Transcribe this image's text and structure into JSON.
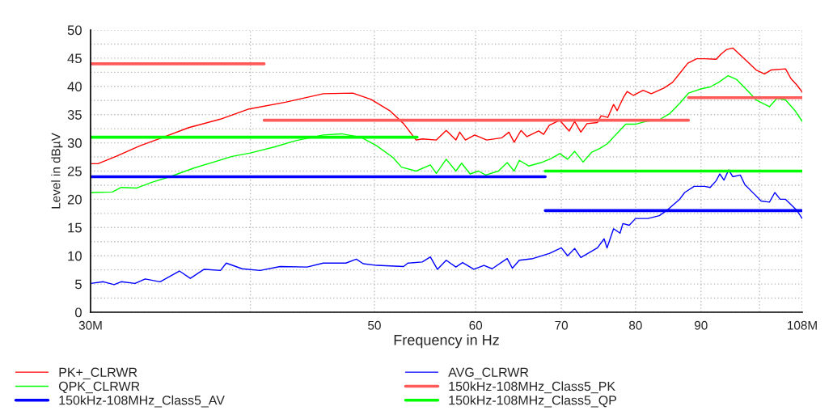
{
  "chart_data": {
    "type": "line",
    "xlabel": "Frequency in Hz",
    "ylabel": "Level in dBµV",
    "log": "x",
    "xlim": [
      30,
      108
    ],
    "xticks": [
      {
        "value": 30,
        "label": "30M"
      },
      {
        "value": 40,
        "label": null
      },
      50,
      60,
      70,
      80,
      90,
      {
        "value": 100,
        "label": null
      },
      {
        "value": 108,
        "label": "108M"
      }
    ],
    "ylim": [
      0,
      50
    ],
    "yticks": [
      0,
      {
        "value": 2.5,
        "label": null
      },
      5,
      {
        "value": 7.5,
        "label": null
      },
      10,
      {
        "value": 12.5,
        "label": null
      },
      15,
      {
        "value": 17.5,
        "label": null
      },
      20,
      {
        "value": 22.5,
        "label": null
      },
      25,
      {
        "value": 27.5,
        "label": null
      },
      30,
      {
        "value": 32.5,
        "label": null
      },
      35,
      {
        "value": 37.5,
        "label": null
      },
      40,
      {
        "value": 42.5,
        "label": null
      },
      45,
      {
        "value": 47.5,
        "label": null
      },
      50
    ],
    "grid": true,
    "legend": "bottom",
    "line_style": "solid",
    "series": [
      {
        "name": "PK+_CLRWR",
        "color": "#ff0000",
        "x": [
          30.0,
          30.4,
          31.4,
          32.8,
          34.1,
          35.8,
          37.9,
          39.9,
          42.6,
          45.6,
          48.1,
          49.7,
          51.4,
          52.7,
          53.9,
          54.5,
          55.9,
          56.9,
          57.9,
          58.3,
          58.9,
          59.9,
          61.2,
          62.9,
          63.7,
          64.3,
          65.1,
          65.8,
          67.2,
          67.8,
          68.5,
          69.8,
          71.0,
          71.7,
          72.5,
          73.3,
          74.7,
          75.2,
          76.1,
          76.9,
          77.4,
          78.3,
          78.8,
          79.7,
          81.1,
          82.3,
          84.2,
          85.5,
          86.7,
          87.9,
          89.3,
          90.6,
          92.5,
          93.3,
          94.2,
          95.3,
          97.4,
          99.4,
          100.9,
          102.1,
          104.8,
          105.8,
          106.9,
          108
        ],
        "values": [
          26.3,
          26.3,
          27.6,
          29.5,
          30.9,
          32.7,
          34.2,
          36.0,
          37.2,
          38.7,
          38.8,
          37.7,
          35.7,
          33.4,
          30.5,
          30.7,
          30.5,
          32.2,
          30.5,
          31.9,
          30.5,
          31.4,
          30.5,
          30.9,
          31.9,
          30.1,
          32.2,
          31.1,
          32.1,
          31.5,
          33.1,
          34.0,
          32.1,
          33.8,
          31.9,
          33.4,
          33.6,
          34.8,
          34.5,
          36.8,
          35.7,
          38.1,
          39.1,
          38.4,
          39.3,
          38.7,
          39.7,
          40.7,
          42.4,
          44.1,
          44.9,
          44.9,
          44.8,
          45.7,
          46.5,
          46.8,
          44.8,
          42.9,
          42.2,
          42.9,
          43.1,
          41.4,
          40.3,
          39.0
        ]
      },
      {
        "name": "QPK_CLRWR",
        "color": "#00ff00",
        "x": [
          30.0,
          31.2,
          31.7,
          32.6,
          33.5,
          34.6,
          36.1,
          38.7,
          40.0,
          41.8,
          43.4,
          45.6,
          47.1,
          48.8,
          50.2,
          51.7,
          52.5,
          53.9,
          55.3,
          55.9,
          56.9,
          57.9,
          58.5,
          59.4,
          60.3,
          61.1,
          62.5,
          63.5,
          64.3,
          64.9,
          66.0,
          67.5,
          68.7,
          69.8,
          70.8,
          71.7,
          72.8,
          73.9,
          75.0,
          76.0,
          78.6,
          80.0,
          81.5,
          83.5,
          85.1,
          86.7,
          88.0,
          89.8,
          91.5,
          92.9,
          94.5,
          96.0,
          98.0,
          99.4,
          101.8,
          103.2,
          104.8,
          106.6,
          108
        ],
        "values": [
          21.2,
          21.3,
          22.1,
          22.0,
          23.0,
          24.0,
          25.5,
          27.6,
          28.2,
          29.3,
          30.4,
          31.4,
          31.6,
          31.0,
          29.5,
          27.4,
          25.7,
          25.0,
          26.1,
          24.6,
          27.1,
          25.0,
          26.4,
          24.5,
          25.0,
          24.3,
          25.0,
          26.5,
          25.0,
          26.9,
          25.9,
          26.5,
          27.2,
          28.1,
          27.1,
          28.5,
          26.6,
          28.3,
          29.0,
          29.8,
          33.3,
          33.3,
          33.8,
          34.1,
          35.2,
          37.1,
          38.8,
          39.5,
          39.9,
          40.7,
          41.9,
          41.2,
          39.1,
          37.6,
          36.4,
          37.9,
          37.6,
          35.7,
          33.8
        ]
      },
      {
        "name": "150kHz-108MHz_Class5_AV",
        "color": "#0000ff",
        "x": [
          30,
          68,
          null,
          68,
          108
        ],
        "values": [
          24,
          24,
          null,
          18,
          18
        ]
      },
      {
        "name": "AVG_CLRWR",
        "color": "#0000ff",
        "x": [
          30.0,
          30.7,
          31.3,
          31.7,
          32.5,
          33.1,
          34.0,
          35.2,
          35.9,
          36.8,
          37.9,
          38.3,
          39.4,
          40.7,
          42.2,
          44.3,
          45.6,
          47.5,
          48.4,
          49.0,
          50.2,
          52.7,
          53.1,
          54.5,
          55.3,
          56.0,
          56.9,
          57.9,
          58.6,
          59.8,
          60.9,
          61.8,
          63.5,
          64.1,
          64.9,
          66.5,
          68.5,
          70.0,
          70.8,
          71.7,
          72.5,
          74.7,
          75.6,
          76.0,
          76.9,
          77.8,
          78.2,
          79.1,
          80.0,
          81.8,
          83.5,
          84.7,
          86.6,
          87.4,
          88.9,
          90.6,
          91.5,
          92.5,
          93.1,
          93.8,
          94.6,
          95.3,
          96.6,
          97.4,
          99.1,
          100.3,
          101.8,
          102.8,
          103.8,
          104.8,
          106.9,
          108
        ],
        "values": [
          5.1,
          5.4,
          4.9,
          5.4,
          5.1,
          5.9,
          5.4,
          7.3,
          6.0,
          7.6,
          7.4,
          8.7,
          7.7,
          7.4,
          8.1,
          8.0,
          8.7,
          8.7,
          9.4,
          8.6,
          8.3,
          8.1,
          8.7,
          8.9,
          9.8,
          7.6,
          9.2,
          8.0,
          8.8,
          7.6,
          8.3,
          7.7,
          9.5,
          7.8,
          9.2,
          9.5,
          10.4,
          11.4,
          10.0,
          11.3,
          9.7,
          11.4,
          13.0,
          11.4,
          14.8,
          14.0,
          15.7,
          15.4,
          16.6,
          16.6,
          17.1,
          18.1,
          20.0,
          21.2,
          22.3,
          22.3,
          22.1,
          23.3,
          24.5,
          23.4,
          25.2,
          24.0,
          24.3,
          22.6,
          20.9,
          19.7,
          19.5,
          21.2,
          20.0,
          20.0,
          18.1,
          16.6
        ]
      },
      {
        "name": "150kHz-108MHz_Class5_PK",
        "color": "#ff5a5a",
        "x": [
          30,
          41,
          null,
          41,
          88,
          null,
          88,
          108
        ],
        "values": [
          44,
          44,
          null,
          34,
          34,
          null,
          38,
          38
        ]
      },
      {
        "name": "150kHz-108MHz_Class5_QP",
        "color": "#00ff00",
        "x": [
          30,
          54,
          null,
          68,
          108
        ],
        "values": [
          31,
          31,
          null,
          25,
          25
        ]
      }
    ]
  }
}
